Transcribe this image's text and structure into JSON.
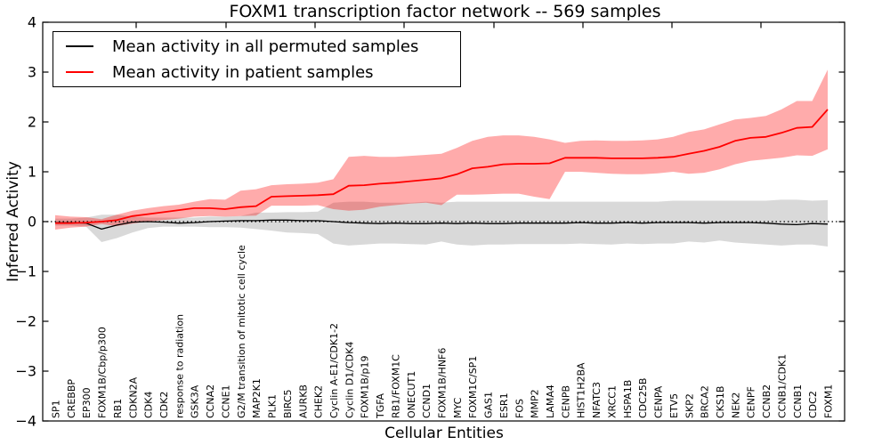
{
  "figure": {
    "title": "FOXM1 transcription factor network -- 569 samples",
    "xlabel": "Cellular Entities",
    "ylabel": "Inferred Activity"
  },
  "legend": {
    "entries": [
      {
        "label": "Mean activity in all permuted samples",
        "color": "#000000"
      },
      {
        "label": "Mean activity in patient samples",
        "color": "#ff0000"
      }
    ]
  },
  "chart_data": {
    "type": "line",
    "title": "FOXM1 transcription factor network -- 569 samples",
    "xlabel": "Cellular Entities",
    "ylabel": "Inferred Activity",
    "ylim": [
      -4,
      4
    ],
    "yticks": [
      -4,
      -3,
      -2,
      -1,
      0,
      1,
      2,
      3,
      4
    ],
    "grid": false,
    "legend_position": "upper left",
    "zero_reference_line": true,
    "categories": [
      "SP1",
      "CREBBP",
      "EP300",
      "FOXM1B/Cbp/p300",
      "RB1",
      "CDKN2A",
      "CDK4",
      "CDK2",
      "response to radiation",
      "GSK3A",
      "CCNA2",
      "CCNE1",
      "G2/M transition of mitotic cell cycle",
      "MAP2K1",
      "PLK1",
      "BIRC5",
      "AURKB",
      "CHEK2",
      "Cyclin A-E1/CDK1-2",
      "Cyclin D1/CDK4",
      "FOXM1B/p19",
      "TGFA",
      "RB1/FOXM1C",
      "ONECUT1",
      "CCND1",
      "FOXM1B/HNF6",
      "MYC",
      "FOXM1C/SP1",
      "GAS1",
      "ESR1",
      "FOS",
      "MMP2",
      "LAMA4",
      "CENPB",
      "HIST1H2BA",
      "NFATC3",
      "XRCC1",
      "HSPA1B",
      "CDC25B",
      "CENPA",
      "ETV5",
      "SKP2",
      "BRCA2",
      "CKS1B",
      "NEK2",
      "CENPF",
      "CCNB2",
      "CCNB1/CDK1",
      "CCNB1",
      "CDC2",
      "FOXM1"
    ],
    "series": [
      {
        "name": "Mean activity in all permuted samples",
        "color": "#000000",
        "line_width": 1.3,
        "band_color": "#808080",
        "band_opacity": 0.3,
        "values": [
          -0.02,
          -0.02,
          -0.03,
          -0.15,
          -0.07,
          -0.01,
          0.0,
          -0.01,
          -0.03,
          -0.02,
          0.0,
          0.01,
          0.02,
          0.02,
          0.03,
          0.03,
          0.02,
          0.02,
          0.0,
          -0.02,
          -0.03,
          -0.04,
          -0.03,
          -0.04,
          -0.04,
          -0.03,
          -0.04,
          -0.03,
          -0.04,
          -0.04,
          -0.03,
          -0.03,
          -0.03,
          -0.03,
          -0.02,
          -0.03,
          -0.03,
          -0.02,
          -0.03,
          -0.02,
          -0.02,
          -0.02,
          -0.03,
          -0.02,
          -0.02,
          -0.02,
          -0.03,
          -0.05,
          -0.06,
          -0.04,
          -0.05
        ],
        "band_upper": [
          0.06,
          0.06,
          0.08,
          0.14,
          0.14,
          0.1,
          0.08,
          0.08,
          0.08,
          0.08,
          0.1,
          0.1,
          0.11,
          0.18,
          0.18,
          0.19,
          0.19,
          0.2,
          0.38,
          0.4,
          0.4,
          0.38,
          0.38,
          0.38,
          0.4,
          0.38,
          0.4,
          0.4,
          0.4,
          0.4,
          0.4,
          0.4,
          0.4,
          0.4,
          0.4,
          0.4,
          0.4,
          0.4,
          0.4,
          0.4,
          0.42,
          0.42,
          0.42,
          0.42,
          0.42,
          0.42,
          0.42,
          0.44,
          0.44,
          0.42,
          0.43
        ],
        "band_lower": [
          -0.08,
          -0.08,
          -0.1,
          -0.41,
          -0.33,
          -0.22,
          -0.13,
          -0.1,
          -0.1,
          -0.1,
          -0.11,
          -0.11,
          -0.12,
          -0.15,
          -0.18,
          -0.22,
          -0.23,
          -0.25,
          -0.44,
          -0.48,
          -0.46,
          -0.44,
          -0.44,
          -0.45,
          -0.46,
          -0.4,
          -0.46,
          -0.48,
          -0.46,
          -0.46,
          -0.45,
          -0.45,
          -0.45,
          -0.45,
          -0.44,
          -0.45,
          -0.46,
          -0.44,
          -0.45,
          -0.44,
          -0.44,
          -0.4,
          -0.42,
          -0.38,
          -0.42,
          -0.44,
          -0.46,
          -0.48,
          -0.46,
          -0.46,
          -0.5
        ]
      },
      {
        "name": "Mean activity in patient samples",
        "color": "#ff0000",
        "line_width": 1.8,
        "band_color": "#ff0000",
        "band_opacity": 0.33,
        "values": [
          -0.03,
          -0.03,
          -0.02,
          0.0,
          0.03,
          0.11,
          0.15,
          0.19,
          0.23,
          0.27,
          0.27,
          0.25,
          0.29,
          0.31,
          0.5,
          0.51,
          0.52,
          0.53,
          0.55,
          0.72,
          0.73,
          0.76,
          0.78,
          0.81,
          0.84,
          0.87,
          0.95,
          1.07,
          1.1,
          1.15,
          1.16,
          1.16,
          1.17,
          1.28,
          1.28,
          1.28,
          1.27,
          1.27,
          1.27,
          1.28,
          1.3,
          1.36,
          1.42,
          1.5,
          1.62,
          1.68,
          1.7,
          1.78,
          1.88,
          1.9,
          2.25
        ],
        "band_upper": [
          0.13,
          0.1,
          0.09,
          0.05,
          0.14,
          0.22,
          0.27,
          0.31,
          0.34,
          0.4,
          0.45,
          0.44,
          0.62,
          0.65,
          0.73,
          0.75,
          0.76,
          0.78,
          0.85,
          1.3,
          1.32,
          1.3,
          1.3,
          1.32,
          1.34,
          1.36,
          1.48,
          1.62,
          1.7,
          1.73,
          1.73,
          1.7,
          1.65,
          1.58,
          1.62,
          1.63,
          1.62,
          1.62,
          1.63,
          1.65,
          1.7,
          1.8,
          1.85,
          1.95,
          2.05,
          2.08,
          2.12,
          2.25,
          2.42,
          2.42,
          3.05
        ],
        "band_lower": [
          -0.16,
          -0.12,
          -0.1,
          -0.05,
          -0.09,
          -0.04,
          0.0,
          0.03,
          0.06,
          0.1,
          0.11,
          0.1,
          0.11,
          0.12,
          0.32,
          0.32,
          0.32,
          0.33,
          0.25,
          0.22,
          0.24,
          0.3,
          0.33,
          0.36,
          0.38,
          0.33,
          0.54,
          0.54,
          0.55,
          0.56,
          0.56,
          0.5,
          0.45,
          1.0,
          1.0,
          0.98,
          0.96,
          0.95,
          0.95,
          0.97,
          1.0,
          0.96,
          0.98,
          1.05,
          1.15,
          1.22,
          1.25,
          1.28,
          1.33,
          1.32,
          1.45
        ]
      }
    ]
  }
}
